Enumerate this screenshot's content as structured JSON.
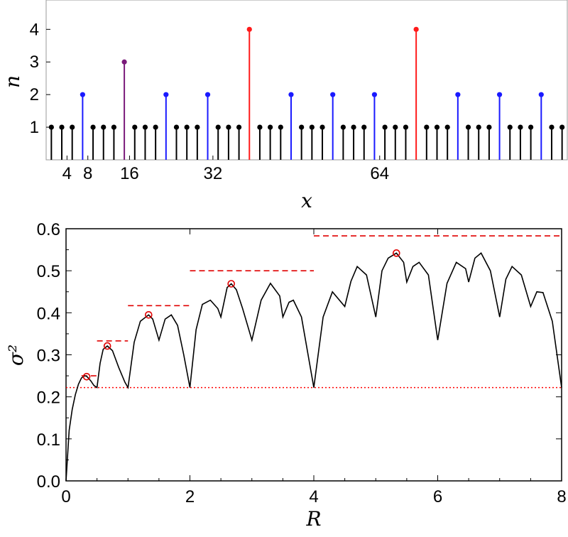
{
  "chart_data": [
    {
      "type": "stem",
      "xlabel": "x",
      "ylabel": "n",
      "x_tick_labels": [
        "4",
        "8",
        "16",
        "32",
        "64"
      ],
      "x_tick_values": [
        4,
        8,
        16,
        32,
        64
      ],
      "y_tick_labels": [
        "1",
        "2",
        "3",
        "4"
      ],
      "y_tick_values": [
        1,
        2,
        3,
        4
      ],
      "xlim": [
        0,
        100
      ],
      "ylim": [
        0,
        4.9
      ],
      "x_start": 1,
      "x_step": 2,
      "rule": "n = 1 + number of times (x-1)/2 ... point values equal 1 + 2-adic valuation of index",
      "series": [
        {
          "level": 1,
          "color": "#000000"
        },
        {
          "level": 2,
          "color": "#1a1aff"
        },
        {
          "level": 3,
          "color": "#7a1a7a"
        },
        {
          "level": 4,
          "color": "#ff1a1a"
        }
      ]
    },
    {
      "type": "line",
      "xlabel": "R",
      "ylabel": "σ²",
      "xlim": [
        0,
        8
      ],
      "ylim": [
        0,
        0.6
      ],
      "x_tick_labels": [
        "0",
        "2",
        "4",
        "6",
        "8"
      ],
      "x_tick_values": [
        0,
        2,
        4,
        6,
        8
      ],
      "y_tick_labels": [
        "0.0",
        "0.1",
        "0.2",
        "0.3",
        "0.4",
        "0.5",
        "0.6"
      ],
      "y_tick_values": [
        0,
        0.1,
        0.2,
        0.3,
        0.4,
        0.5,
        0.6
      ],
      "baseline": {
        "y": 0.222,
        "color": "#ff0000",
        "style": "dotted"
      },
      "level_lines": [
        {
          "x_start": 0.25,
          "x_end": 0.5,
          "y": 0.25
        },
        {
          "x_start": 0.5,
          "x_end": 1.0,
          "y": 0.333
        },
        {
          "x_start": 1.0,
          "x_end": 2.0,
          "y": 0.417
        },
        {
          "x_start": 2.0,
          "x_end": 4.0,
          "y": 0.5
        },
        {
          "x_start": 4.0,
          "x_end": 8.0,
          "y": 0.583
        }
      ],
      "maxima_markers": [
        {
          "x": 0.333,
          "y": 0.248
        },
        {
          "x": 0.667,
          "y": 0.321
        },
        {
          "x": 1.333,
          "y": 0.395
        },
        {
          "x": 2.667,
          "y": 0.469
        },
        {
          "x": 5.333,
          "y": 0.542
        }
      ],
      "curve": {
        "x": [
          0,
          0.05,
          0.1,
          0.15,
          0.2,
          0.25,
          0.3,
          0.333,
          0.4,
          0.45,
          0.5,
          0.55,
          0.6,
          0.667,
          0.75,
          0.85,
          0.95,
          1.0,
          1.1,
          1.2,
          1.333,
          1.4,
          1.5,
          1.6,
          1.7,
          1.8,
          1.9,
          2.0,
          2.1,
          2.2,
          2.33,
          2.45,
          2.5,
          2.6,
          2.667,
          2.75,
          2.85,
          3.0,
          3.15,
          3.3,
          3.45,
          3.5,
          3.6,
          3.67,
          3.8,
          4.0,
          4.15,
          4.3,
          4.5,
          4.6,
          4.7,
          4.85,
          5.0,
          5.1,
          5.2,
          5.333,
          5.45,
          5.5,
          5.6,
          5.7,
          5.85,
          6.0,
          6.15,
          6.3,
          6.45,
          6.5,
          6.6,
          6.7,
          6.85,
          7.0,
          7.1,
          7.2,
          7.35,
          7.5,
          7.6,
          7.7,
          7.85,
          8.0
        ],
        "y": [
          0,
          0.12,
          0.17,
          0.205,
          0.23,
          0.245,
          0.25,
          0.249,
          0.238,
          0.227,
          0.222,
          0.28,
          0.313,
          0.321,
          0.31,
          0.27,
          0.235,
          0.222,
          0.33,
          0.38,
          0.395,
          0.385,
          0.335,
          0.385,
          0.395,
          0.37,
          0.3,
          0.222,
          0.36,
          0.42,
          0.43,
          0.41,
          0.39,
          0.46,
          0.469,
          0.455,
          0.41,
          0.335,
          0.43,
          0.47,
          0.44,
          0.39,
          0.425,
          0.43,
          0.39,
          0.222,
          0.39,
          0.45,
          0.415,
          0.475,
          0.51,
          0.49,
          0.39,
          0.5,
          0.53,
          0.542,
          0.52,
          0.473,
          0.51,
          0.52,
          0.49,
          0.335,
          0.47,
          0.52,
          0.505,
          0.473,
          0.53,
          0.542,
          0.5,
          0.39,
          0.48,
          0.51,
          0.49,
          0.415,
          0.45,
          0.448,
          0.38,
          0.222
        ]
      }
    }
  ]
}
